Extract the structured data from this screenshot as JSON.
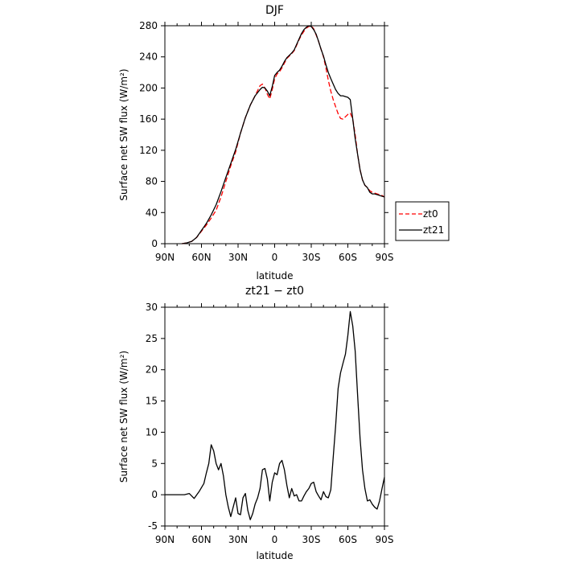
{
  "chart_data": [
    {
      "type": "line",
      "title": "DJF",
      "xlabel": "latitude",
      "ylabel": "Surface net SW flux (W/m²)",
      "xlim": [
        90,
        -90
      ],
      "ylim": [
        0,
        280
      ],
      "xticks": [
        {
          "value": 90,
          "label": "90N"
        },
        {
          "value": 60,
          "label": "60N"
        },
        {
          "value": 30,
          "label": "30N"
        },
        {
          "value": 0,
          "label": "0"
        },
        {
          "value": -30,
          "label": "30S"
        },
        {
          "value": -60,
          "label": "60S"
        },
        {
          "value": -90,
          "label": "90S"
        }
      ],
      "yticks": [
        0,
        40,
        80,
        120,
        160,
        200,
        240,
        280
      ],
      "legend_position": "outside-right",
      "series": [
        {
          "name": "zt0",
          "color": "#ff0000",
          "dash": "dashed",
          "x": [
            76,
            72,
            68,
            64,
            60,
            56,
            52,
            48,
            44,
            40,
            36,
            32,
            28,
            24,
            20,
            16,
            12,
            10,
            8,
            6,
            4,
            2,
            0,
            -2,
            -4,
            -6,
            -8,
            -10,
            -12,
            -14,
            -16,
            -18,
            -20,
            -22,
            -24,
            -26,
            -28,
            -30,
            -32,
            -34,
            -36,
            -38,
            -40,
            -42,
            -44,
            -46,
            -48,
            -50,
            -52,
            -54,
            -56,
            -58,
            -60,
            -62,
            -64,
            -66,
            -68,
            -70,
            -72,
            -74,
            -76,
            -78,
            -80,
            -82,
            -84,
            -86,
            -88,
            -90
          ],
          "y": [
            0,
            1,
            3,
            8,
            16,
            24,
            33,
            43,
            60,
            80,
            100,
            118,
            142,
            162,
            178,
            190,
            203,
            205,
            200,
            192,
            186,
            198,
            212,
            218,
            221,
            226,
            232,
            238,
            241,
            244,
            248,
            255,
            262,
            268,
            273,
            277,
            279,
            280,
            276,
            268,
            260,
            250,
            240,
            226,
            210,
            196,
            185,
            176,
            167,
            161,
            160,
            163,
            166,
            168,
            160,
            140,
            115,
            95,
            82,
            75,
            72,
            68,
            66,
            65,
            64,
            63,
            62,
            60
          ]
        },
        {
          "name": "zt21",
          "color": "#000000",
          "dash": "solid",
          "x": [
            76,
            72,
            68,
            64,
            60,
            56,
            52,
            48,
            44,
            40,
            36,
            32,
            28,
            24,
            20,
            16,
            12,
            10,
            8,
            6,
            4,
            2,
            0,
            -2,
            -4,
            -6,
            -8,
            -10,
            -12,
            -14,
            -16,
            -18,
            -20,
            -22,
            -24,
            -26,
            -28,
            -30,
            -32,
            -34,
            -36,
            -38,
            -40,
            -42,
            -44,
            -46,
            -48,
            -50,
            -52,
            -54,
            -56,
            -58,
            -60,
            -62,
            -64,
            -66,
            -68,
            -70,
            -72,
            -74,
            -76,
            -78,
            -80,
            -82,
            -84,
            -86,
            -88,
            -90
          ],
          "y": [
            0,
            1,
            3,
            8,
            17,
            26,
            37,
            50,
            67,
            85,
            103,
            121,
            142,
            162,
            178,
            190,
            198,
            201,
            200,
            196,
            190,
            202,
            216,
            220,
            223,
            228,
            234,
            239,
            242,
            245,
            249,
            256,
            263,
            270,
            275,
            278,
            280,
            279,
            275,
            269,
            260,
            250,
            241,
            230,
            220,
            212,
            205,
            198,
            193,
            190,
            190,
            189,
            188,
            185,
            160,
            135,
            115,
            95,
            82,
            75,
            72,
            66,
            64,
            64,
            63,
            62,
            61,
            60
          ]
        }
      ]
    },
    {
      "type": "line",
      "title": "zt21 − zt0",
      "xlabel": "latitude",
      "ylabel": "Surface net SW flux (W/m²)",
      "xlim": [
        90,
        -90
      ],
      "ylim": [
        -5,
        30
      ],
      "xticks": [
        {
          "value": 90,
          "label": "90N"
        },
        {
          "value": 60,
          "label": "60N"
        },
        {
          "value": 30,
          "label": "30N"
        },
        {
          "value": 0,
          "label": "0"
        },
        {
          "value": -30,
          "label": "30S"
        },
        {
          "value": -60,
          "label": "60S"
        },
        {
          "value": -90,
          "label": "90S"
        }
      ],
      "yticks": [
        -5,
        0,
        5,
        10,
        15,
        20,
        25,
        30
      ],
      "series": [
        {
          "color": "#000000",
          "dash": "solid",
          "x": [
            90,
            80,
            74,
            70,
            66,
            62,
            58,
            56,
            54,
            52,
            50,
            48,
            46,
            44,
            42,
            40,
            38,
            36,
            34,
            32,
            30,
            28,
            26,
            24,
            22,
            20,
            18,
            16,
            14,
            12,
            10,
            8,
            6,
            4,
            2,
            0,
            -2,
            -4,
            -6,
            -8,
            -10,
            -12,
            -14,
            -16,
            -18,
            -20,
            -22,
            -24,
            -26,
            -28,
            -30,
            -32,
            -34,
            -36,
            -38,
            -40,
            -42,
            -44,
            -46,
            -48,
            -50,
            -52,
            -54,
            -56,
            -58,
            -60,
            -62,
            -64,
            -66,
            -68,
            -70,
            -72,
            -74,
            -76,
            -78,
            -80,
            -82,
            -84,
            -86,
            -88,
            -90
          ],
          "y": [
            0,
            0,
            0,
            0.2,
            -0.6,
            0.5,
            1.8,
            3.5,
            5.0,
            8.0,
            7.0,
            5.0,
            4.0,
            5.0,
            3.0,
            0,
            -2.0,
            -3.5,
            -2.0,
            -0.5,
            -3.0,
            -3.2,
            -0.5,
            0.2,
            -2.5,
            -4.0,
            -3.0,
            -1.5,
            -0.5,
            1.0,
            4.0,
            4.2,
            2.5,
            -1.0,
            2.0,
            3.5,
            3.2,
            5.0,
            5.5,
            4.0,
            1.5,
            -0.5,
            1.0,
            -0.2,
            0,
            -1.0,
            -1.0,
            -0.2,
            0.5,
            1.0,
            1.8,
            2.0,
            0.5,
            -0.2,
            -0.8,
            0.5,
            -0.3,
            -0.5,
            0.8,
            6.0,
            11.0,
            17.0,
            19.5,
            21.0,
            22.5,
            25.5,
            29.3,
            27.0,
            23.0,
            16.0,
            9.0,
            4.0,
            1.0,
            -1.0,
            -0.8,
            -1.5,
            -2.0,
            -2.3,
            -1.0,
            1.0,
            2.8
          ]
        }
      ]
    }
  ]
}
